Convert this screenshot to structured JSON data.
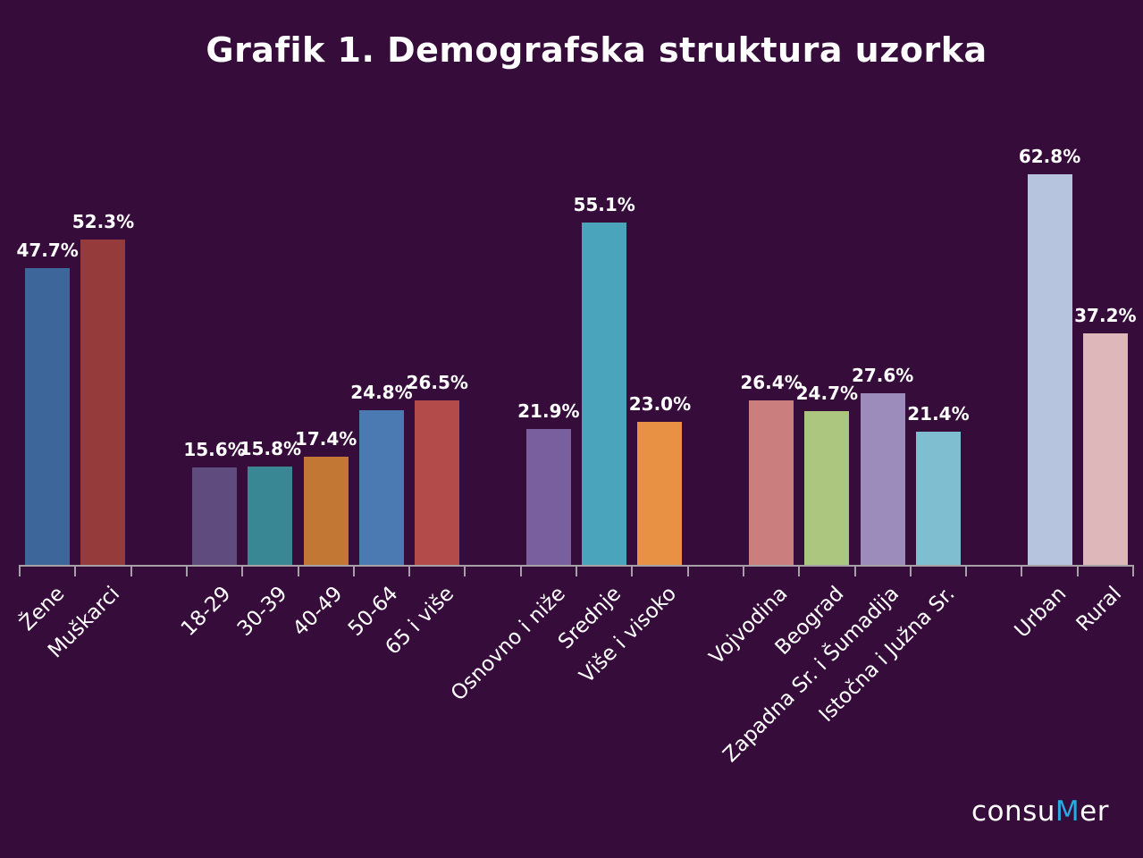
{
  "page": {
    "background": "#360c3b"
  },
  "logo": {
    "prefix": "consu",
    "highlight": "M",
    "suffix": "er",
    "highlight_color": "#29abe2",
    "text_color": "#ffffff"
  },
  "chart_data": {
    "type": "bar",
    "title": "Grafik 1. Demografska struktura uzorka",
    "xlabel": "",
    "ylabel": "",
    "ylim": [
      0,
      70
    ],
    "grid": false,
    "legend": false,
    "value_suffix": "%",
    "value_decimals": 1,
    "background": "#360c3b",
    "axis_color": "#a79fa8",
    "label_color": "#ffffff",
    "groups": [
      [
        {
          "label": "Žene",
          "value": 47.7,
          "color": "#3d669b"
        },
        {
          "label": "Muškarci",
          "value": 52.3,
          "color": "#963b3b"
        }
      ],
      [
        {
          "label": "18-29",
          "value": 15.6,
          "color": "#5f4b7d"
        },
        {
          "label": "30-39",
          "value": 15.8,
          "color": "#398795"
        },
        {
          "label": "40-49",
          "value": 17.4,
          "color": "#c27734"
        },
        {
          "label": "50-64",
          "value": 24.8,
          "color": "#4b7ab3"
        },
        {
          "label": "65 i više",
          "value": 26.5,
          "color": "#b34b4b"
        }
      ],
      [
        {
          "label": "Osnovno i niže",
          "value": 21.9,
          "color": "#7a5f9e"
        },
        {
          "label": "Srednje",
          "value": 55.1,
          "color": "#4aa4bb"
        },
        {
          "label": "Više i visoko",
          "value": 23.0,
          "color": "#e89044"
        }
      ],
      [
        {
          "label": "Vojvodina",
          "value": 26.4,
          "color": "#ca7f7e"
        },
        {
          "label": "Beograd",
          "value": 24.7,
          "color": "#adc67f"
        },
        {
          "label": "Zapadna Sr. i Šumadija",
          "value": 27.6,
          "color": "#9c8cbb"
        },
        {
          "label": "Istočna i Južna Sr.",
          "value": 21.4,
          "color": "#7fbdd1"
        }
      ],
      [
        {
          "label": "Urban",
          "value": 62.8,
          "color": "#b6c4de"
        },
        {
          "label": "Rural",
          "value": 37.2,
          "color": "#deb7bb"
        }
      ]
    ]
  }
}
